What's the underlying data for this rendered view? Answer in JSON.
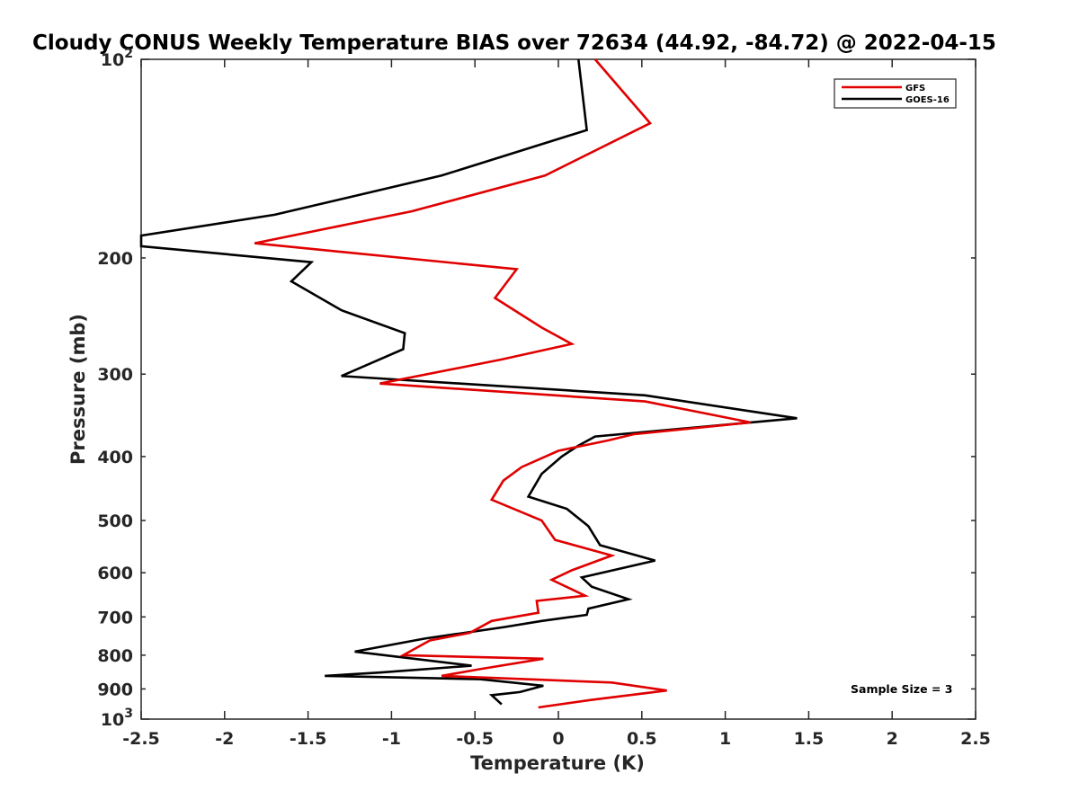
{
  "chart_data": {
    "type": "line",
    "title": "Cloudy CONUS Weekly Temperature BIAS over 72634 (44.92, -84.72) @ 2022-04-15",
    "xlabel": "Temperature (K)",
    "ylabel": "Pressure (mb)",
    "xlim": [
      -2.5,
      2.5
    ],
    "ylim": [
      1000,
      100
    ],
    "y_scale": "log",
    "grid": false,
    "x_ticks": [
      "-2.5",
      "-2",
      "-1.5",
      "-1",
      "-0.5",
      "0",
      "0.5",
      "1",
      "1.5",
      "2",
      "2.5"
    ],
    "y_ticks": [
      {
        "value": 100,
        "base": "10",
        "exp": "2"
      },
      {
        "value": 200,
        "label": "200"
      },
      {
        "value": 300,
        "label": "300"
      },
      {
        "value": 400,
        "label": "400"
      },
      {
        "value": 500,
        "label": "500"
      },
      {
        "value": 600,
        "label": "600"
      },
      {
        "value": 700,
        "label": "700"
      },
      {
        "value": 800,
        "label": "800"
      },
      {
        "value": 900,
        "label": "900"
      },
      {
        "value": 1000,
        "base": "10",
        "exp": "3"
      }
    ],
    "legend": {
      "position": "top-right",
      "entries": [
        {
          "name": "GFS",
          "color": "#e00000"
        },
        {
          "name": "GOES-16",
          "color": "#000000"
        }
      ]
    },
    "annotation": "Sample Size = 3",
    "series": [
      {
        "name": "GFS",
        "color": "#e00000",
        "points": [
          [
            0.22,
            100
          ],
          [
            0.55,
            125
          ],
          [
            -0.08,
            150
          ],
          [
            -0.88,
            170
          ],
          [
            -1.82,
            190
          ],
          [
            -0.25,
            208
          ],
          [
            -0.38,
            230
          ],
          [
            -0.1,
            255
          ],
          [
            0.08,
            270
          ],
          [
            -0.34,
            285
          ],
          [
            -1.07,
            310
          ],
          [
            0.52,
            330
          ],
          [
            1.15,
            355
          ],
          [
            0.45,
            370
          ],
          [
            0.3,
            378
          ],
          [
            0.0,
            392
          ],
          [
            -0.22,
            415
          ],
          [
            -0.33,
            435
          ],
          [
            -0.4,
            465
          ],
          [
            -0.1,
            500
          ],
          [
            -0.02,
            535
          ],
          [
            0.32,
            565
          ],
          [
            0.08,
            595
          ],
          [
            -0.04,
            615
          ],
          [
            0.16,
            650
          ],
          [
            -0.13,
            662
          ],
          [
            -0.12,
            690
          ],
          [
            -0.4,
            710
          ],
          [
            -0.53,
            740
          ],
          [
            -0.77,
            760
          ],
          [
            -0.93,
            800
          ],
          [
            -0.09,
            810
          ],
          [
            -0.47,
            840
          ],
          [
            -0.7,
            860
          ],
          [
            0.32,
            880
          ],
          [
            0.65,
            905
          ],
          [
            0.2,
            935
          ],
          [
            -0.12,
            960
          ]
        ]
      },
      {
        "name": "GOES-16",
        "color": "#000000",
        "points": [
          [
            0.12,
            100
          ],
          [
            0.17,
            128
          ],
          [
            -0.7,
            150
          ],
          [
            -1.7,
            172
          ],
          [
            -2.5,
            185
          ],
          [
            -2.5,
            192
          ],
          [
            -1.48,
            203
          ],
          [
            -1.6,
            217
          ],
          [
            -1.3,
            240
          ],
          [
            -0.92,
            260
          ],
          [
            -0.93,
            275
          ],
          [
            -1.3,
            302
          ],
          [
            0.52,
            323
          ],
          [
            1.43,
            350
          ],
          [
            0.22,
            373
          ],
          [
            0.12,
            385
          ],
          [
            0.02,
            400
          ],
          [
            -0.1,
            425
          ],
          [
            -0.18,
            460
          ],
          [
            0.05,
            480
          ],
          [
            0.18,
            510
          ],
          [
            0.25,
            545
          ],
          [
            0.58,
            575
          ],
          [
            0.14,
            610
          ],
          [
            0.2,
            630
          ],
          [
            0.42,
            658
          ],
          [
            0.18,
            680
          ],
          [
            0.17,
            695
          ],
          [
            -0.1,
            710
          ],
          [
            -0.32,
            725
          ],
          [
            -0.8,
            755
          ],
          [
            -1.22,
            790
          ],
          [
            -0.52,
            830
          ],
          [
            -1.07,
            850
          ],
          [
            -1.4,
            860
          ],
          [
            -0.47,
            870
          ],
          [
            -0.09,
            890
          ],
          [
            -0.23,
            910
          ],
          [
            -0.4,
            920
          ],
          [
            -0.34,
            950
          ]
        ]
      }
    ]
  }
}
